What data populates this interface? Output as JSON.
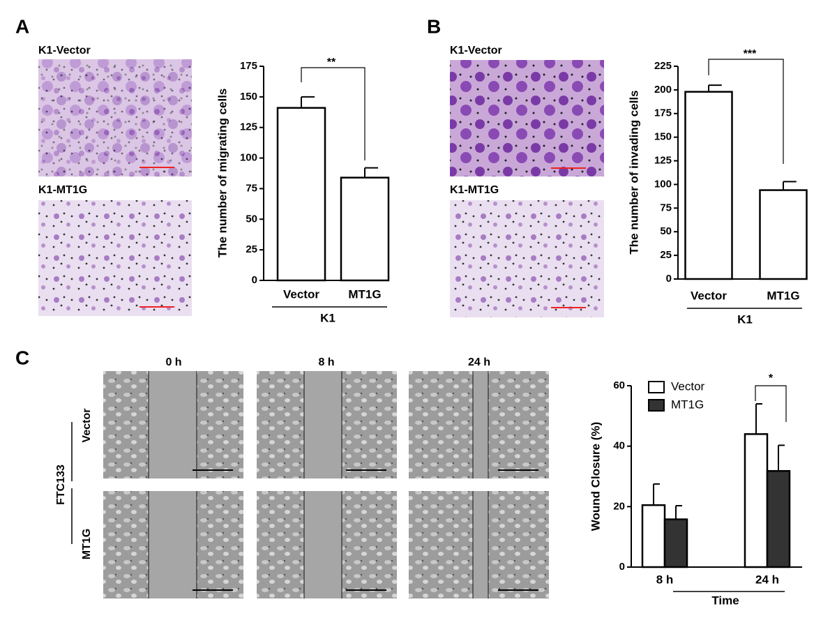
{
  "figure": {
    "panels": [
      "A",
      "B",
      "C"
    ],
    "image_labels_a": [
      "K1-Vector",
      "K1-MT1G"
    ],
    "image_labels_b": [
      "K1-Vector",
      "K1-MT1G"
    ],
    "column_headers": [
      "0 h",
      "8 h",
      "24 h"
    ],
    "row_labels": [
      "Vector",
      "MT1G"
    ],
    "group_label": "FTC133"
  },
  "chart_data": [
    {
      "type": "bar",
      "y_label": "The number of migrating cells",
      "x_label": "K1",
      "annotation": "**",
      "categories": [
        "Vector",
        "MT1G"
      ],
      "values": [
        141,
        84
      ],
      "error": [
        9,
        8
      ],
      "color": "#ffffff",
      "ylim": [
        0,
        175
      ],
      "yticks": [
        0,
        25,
        50,
        75,
        100,
        125,
        150,
        175
      ]
    },
    {
      "type": "bar",
      "y_label": "The number of invading cells",
      "x_label": "K1",
      "annotation": "***",
      "categories": [
        "Vector",
        "MT1G"
      ],
      "values": [
        198,
        94
      ],
      "error": [
        7,
        9
      ],
      "color": "#ffffff",
      "ylim": [
        0,
        225
      ],
      "yticks": [
        0,
        25,
        50,
        75,
        100,
        125,
        150,
        175,
        200,
        225
      ]
    },
    {
      "type": "bar",
      "y_label": "Wound Closure (%)",
      "x_label": "Time",
      "annotation": "*",
      "categories": [
        "8 h",
        "24 h"
      ],
      "legend": "upper left",
      "series": [
        {
          "name": "Vector",
          "color": "#ffffff",
          "values": [
            20.5,
            44
          ],
          "error": [
            7,
            10
          ]
        },
        {
          "name": "MT1G",
          "color": "#333333",
          "values": [
            15.8,
            31.8
          ],
          "error": [
            4.5,
            8.5
          ]
        }
      ],
      "ylim": [
        0,
        60
      ],
      "yticks": [
        0,
        20,
        40,
        60
      ]
    }
  ]
}
